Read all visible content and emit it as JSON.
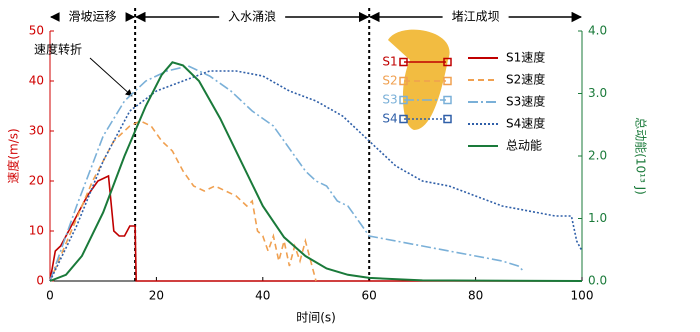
{
  "chart_data": {
    "type": "line",
    "xlabel": "时间(s)",
    "ylabel": "速度(m/s)",
    "y2label": "总动能(10¹³ J)",
    "xlim": [
      0,
      100
    ],
    "xticks": [
      0,
      20,
      40,
      60,
      80,
      100
    ],
    "ylim": [
      0,
      50
    ],
    "yticks": [
      0,
      10,
      20,
      30,
      40,
      50
    ],
    "y2lim": [
      0,
      4
    ],
    "y2ticks": [
      {
        "value": 0,
        "label": "0.0"
      },
      {
        "value": 1,
        "label": "1.0"
      },
      {
        "value": 2,
        "label": "2.0"
      },
      {
        "value": 3,
        "label": "3.0"
      },
      {
        "value": 4,
        "label": "4.0"
      }
    ],
    "phases": [
      {
        "label": "滑坡运移",
        "start": 0,
        "end": 16
      },
      {
        "label": "入水涌浪",
        "start": 16,
        "end": 60
      },
      {
        "label": "堵江成坝",
        "start": 60,
        "end": 100
      }
    ],
    "annotation": "速度转折",
    "inset_labels": [
      "S1",
      "S2",
      "S3",
      "S4"
    ],
    "series": [
      {
        "name": "S1速度",
        "color": "#c00000",
        "dash": "",
        "x": [
          0,
          1,
          2,
          3,
          5,
          7,
          9,
          11,
          12,
          13,
          14,
          15,
          16,
          16.2,
          100
        ],
        "values": [
          0,
          6,
          7,
          9,
          13,
          17,
          20,
          21,
          10,
          9,
          9,
          11,
          11,
          0,
          0
        ]
      },
      {
        "name": "S2速度",
        "color": "#f0a050",
        "dash": "6 4",
        "x": [
          0,
          4,
          8,
          12,
          15,
          17,
          19,
          21,
          23,
          25,
          27,
          29,
          31,
          33,
          35,
          37,
          38,
          39,
          40,
          41,
          42,
          43,
          44,
          45,
          46,
          47,
          48,
          49,
          50
        ],
        "values": [
          0,
          10,
          20,
          28,
          31,
          32,
          31,
          28,
          26,
          22,
          19,
          18,
          19,
          18,
          17,
          15,
          16,
          10,
          9,
          6,
          9,
          4,
          8,
          3,
          7,
          4,
          8,
          4,
          0
        ]
      },
      {
        "name": "S3速度",
        "color": "#7ab0d8",
        "dash": "10 3 2 3",
        "x": [
          0,
          5,
          10,
          14,
          18,
          22,
          26,
          30,
          34,
          38,
          42,
          46,
          48,
          50,
          52,
          54,
          56,
          58,
          60,
          65,
          70,
          75,
          80,
          85,
          88,
          89
        ],
        "values": [
          0,
          15,
          29,
          36,
          40,
          42,
          43,
          41,
          38,
          34,
          31,
          25,
          22,
          20,
          19,
          16,
          15,
          12,
          9,
          8,
          7,
          6,
          5,
          4,
          3,
          2
        ]
      },
      {
        "name": "S4速度",
        "color": "#2f5fa8",
        "dash": "2 2",
        "x": [
          0,
          5,
          10,
          15,
          20,
          25,
          30,
          35,
          40,
          45,
          50,
          55,
          60,
          65,
          70,
          75,
          80,
          85,
          90,
          95,
          98,
          99,
          100
        ],
        "values": [
          0,
          11,
          24,
          34,
          38,
          40,
          42,
          42,
          41,
          38,
          36,
          33,
          28,
          23,
          20,
          19,
          17,
          15,
          14,
          13,
          13,
          8,
          6
        ]
      },
      {
        "name": "总动能",
        "color": "#1a7a3a",
        "dash": "",
        "axis": "y2",
        "x": [
          0,
          3,
          6,
          10,
          14,
          18,
          21,
          23,
          25,
          28,
          32,
          36,
          40,
          44,
          48,
          52,
          56,
          60,
          70,
          100
        ],
        "values": [
          0,
          0.1,
          0.4,
          1.1,
          2.0,
          2.8,
          3.3,
          3.5,
          3.45,
          3.2,
          2.6,
          1.9,
          1.2,
          0.7,
          0.4,
          0.2,
          0.1,
          0.05,
          0.01,
          0
        ]
      }
    ]
  }
}
